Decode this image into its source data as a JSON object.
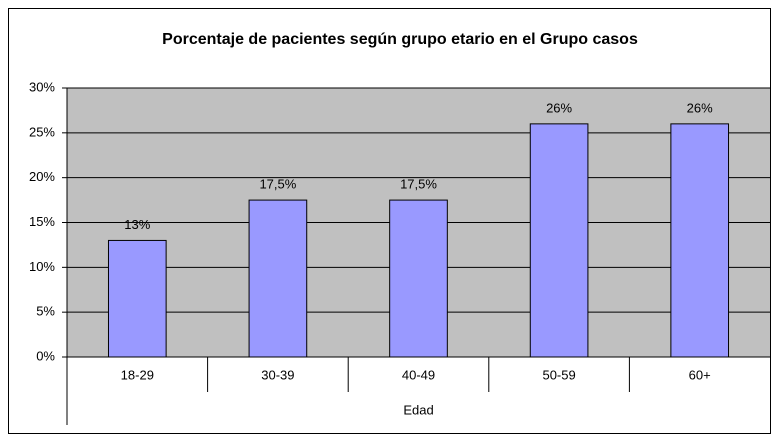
{
  "chart_data": {
    "type": "bar",
    "title": "Porcentaje de pacientes según grupo etario en el Grupo casos",
    "x_label": "Edad",
    "categories": [
      "18-29",
      "30-39",
      "40-49",
      "50-59",
      "60+"
    ],
    "values": [
      13,
      17.5,
      17.5,
      26,
      26
    ],
    "value_labels": [
      "13%",
      "17,5%",
      "17,5%",
      "26%",
      "26%"
    ],
    "color": "#9999ff",
    "ylim": [
      0,
      30
    ],
    "yticks": [
      {
        "value": 0,
        "label": "0%"
      },
      {
        "value": 5,
        "label": "5%"
      },
      {
        "value": 10,
        "label": "10%"
      },
      {
        "value": 15,
        "label": "15%"
      },
      {
        "value": 20,
        "label": "20%"
      },
      {
        "value": 25,
        "label": "25%"
      },
      {
        "value": 30,
        "label": "30%"
      }
    ],
    "grid": true
  }
}
